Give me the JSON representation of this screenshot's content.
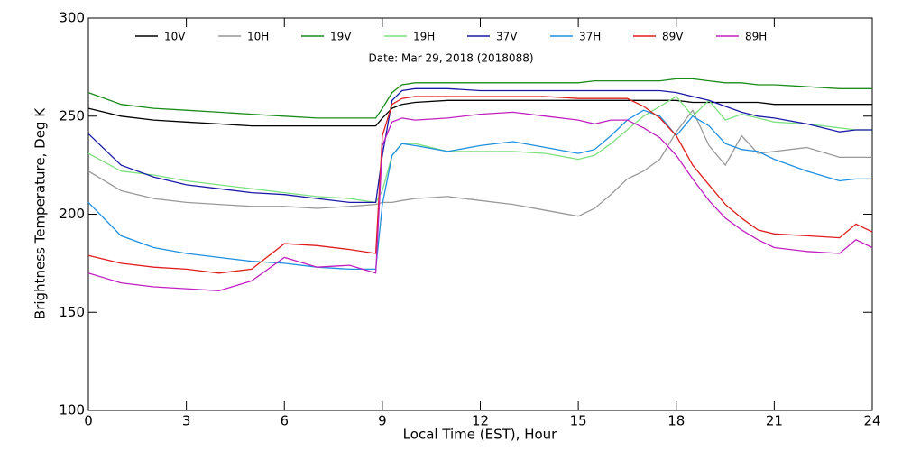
{
  "chart_data": {
    "type": "line",
    "subtitle": "Date: Mar 29, 2018 (2018088)",
    "x_label": "Local Time (EST), Hour",
    "y_label": "Brightness Temperature, Deg K",
    "x": [
      0,
      1,
      2,
      3,
      4,
      5,
      6,
      7,
      8,
      8.8,
      9,
      9.3,
      9.6,
      10,
      11,
      12,
      13,
      14,
      15,
      15.5,
      16,
      16.5,
      17,
      17.5,
      18,
      18.5,
      19,
      19.5,
      20,
      20.5,
      21,
      22,
      23,
      23.5,
      24
    ],
    "xlim": [
      0,
      24
    ],
    "xticks": [
      0,
      3,
      6,
      9,
      12,
      15,
      18,
      21,
      24
    ],
    "ylim": [
      100,
      300
    ],
    "yticks": [
      100,
      150,
      200,
      250,
      300
    ],
    "series": [
      {
        "name": "10V",
        "color": "#000000",
        "values": [
          254,
          250,
          248,
          247,
          246,
          245,
          245,
          245,
          245,
          245,
          249,
          254,
          256,
          257,
          258,
          258,
          258,
          258,
          258,
          258,
          258,
          258,
          258,
          258,
          258,
          257,
          257,
          257,
          257,
          257,
          256,
          256,
          256,
          256,
          256
        ]
      },
      {
        "name": "10H",
        "color": "#999999",
        "values": [
          222,
          212,
          208,
          206,
          205,
          204,
          204,
          203,
          204,
          205,
          206,
          206,
          207,
          208,
          209,
          207,
          205,
          202,
          199,
          203,
          210,
          218,
          222,
          228,
          242,
          253,
          235,
          225,
          240,
          231,
          232,
          234,
          229,
          229,
          229
        ]
      },
      {
        "name": "19V",
        "color": "#1a8c1a",
        "values": [
          262,
          256,
          254,
          253,
          252,
          251,
          250,
          249,
          249,
          249,
          254,
          262,
          266,
          267,
          267,
          267,
          267,
          267,
          267,
          268,
          268,
          268,
          268,
          268,
          269,
          269,
          268,
          267,
          267,
          266,
          266,
          265,
          264,
          264,
          264
        ]
      },
      {
        "name": "19H",
        "color": "#7ee07e",
        "values": [
          231,
          222,
          220,
          217,
          215,
          213,
          211,
          209,
          208,
          206,
          212,
          230,
          236,
          236,
          232,
          232,
          232,
          231,
          228,
          230,
          236,
          243,
          250,
          255,
          260,
          250,
          258,
          248,
          251,
          249,
          247,
          246,
          244,
          243,
          243
        ]
      },
      {
        "name": "37V",
        "color": "#1a1aa8",
        "values": [
          241,
          225,
          219,
          215,
          213,
          211,
          210,
          208,
          206,
          206,
          230,
          258,
          263,
          264,
          264,
          263,
          263,
          263,
          263,
          263,
          263,
          263,
          263,
          263,
          262,
          260,
          258,
          255,
          252,
          250,
          249,
          246,
          242,
          243,
          243
        ]
      },
      {
        "name": "37H",
        "color": "#1e90e0",
        "values": [
          206,
          189,
          183,
          180,
          178,
          176,
          175,
          173,
          172,
          172,
          205,
          230,
          236,
          235,
          232,
          235,
          237,
          234,
          231,
          233,
          240,
          248,
          253,
          250,
          240,
          250,
          245,
          236,
          233,
          232,
          228,
          222,
          217,
          218,
          218
        ]
      },
      {
        "name": "89V",
        "color": "#e01e1e",
        "values": [
          179,
          175,
          173,
          172,
          170,
          172,
          185,
          184,
          182,
          180,
          240,
          256,
          259,
          260,
          260,
          260,
          260,
          260,
          259,
          259,
          259,
          259,
          255,
          249,
          240,
          225,
          215,
          205,
          198,
          192,
          190,
          189,
          188,
          195,
          191
        ]
      },
      {
        "name": "89H",
        "color": "#c020c0",
        "values": [
          170,
          165,
          163,
          162,
          161,
          166,
          178,
          173,
          174,
          170,
          235,
          247,
          249,
          248,
          249,
          251,
          252,
          250,
          248,
          246,
          248,
          248,
          244,
          239,
          230,
          218,
          207,
          198,
          192,
          187,
          183,
          181,
          180,
          187,
          183
        ]
      }
    ]
  }
}
